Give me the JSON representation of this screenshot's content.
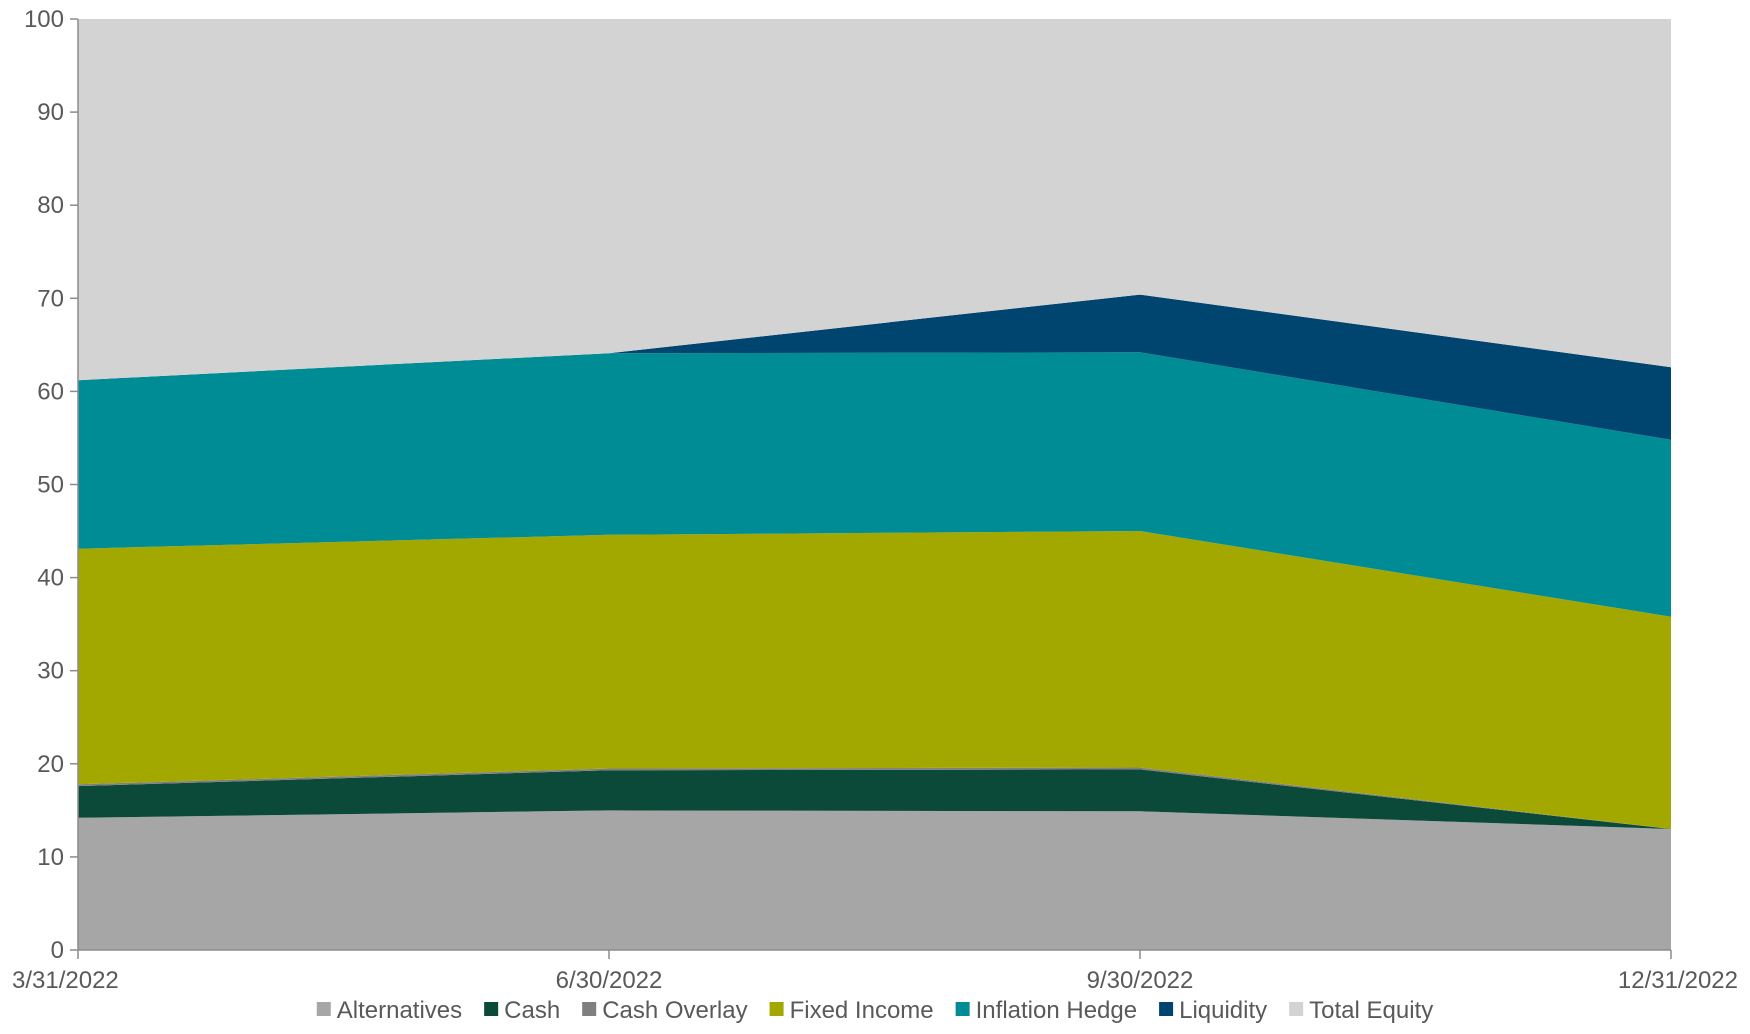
{
  "chart_data": {
    "type": "area",
    "stacked": true,
    "x": [
      "3/31/2022",
      "6/30/2022",
      "9/30/2022",
      "12/31/2022"
    ],
    "ylim": [
      0,
      100
    ],
    "yticks": [
      "0",
      "10",
      "20",
      "30",
      "40",
      "50",
      "60",
      "70",
      "80",
      "90",
      "100"
    ],
    "grid": false,
    "legend_position": "bottom",
    "series": [
      {
        "name": "Alternatives",
        "color": "#A6A6A6",
        "values": [
          14.2,
          15.0,
          14.9,
          13.0
        ]
      },
      {
        "name": "Cash",
        "color": "#0B4A38",
        "values": [
          3.4,
          4.3,
          4.5,
          0.0
        ]
      },
      {
        "name": "Cash Overlay",
        "color": "#7F7F7F",
        "values": [
          0.2,
          0.2,
          0.2,
          0.0
        ]
      },
      {
        "name": "Fixed Income",
        "color": "#A3A800",
        "values": [
          25.3,
          25.1,
          25.4,
          22.8
        ]
      },
      {
        "name": "Inflation Hedge",
        "color": "#008C95",
        "values": [
          18.1,
          19.5,
          19.2,
          19.0
        ]
      },
      {
        "name": "Liquidity",
        "color": "#004470",
        "values": [
          0.0,
          0.0,
          6.2,
          7.8
        ]
      },
      {
        "name": "Total Equity",
        "color": "#D3D3D3",
        "values": [
          38.8,
          35.9,
          29.6,
          37.4
        ]
      }
    ]
  }
}
